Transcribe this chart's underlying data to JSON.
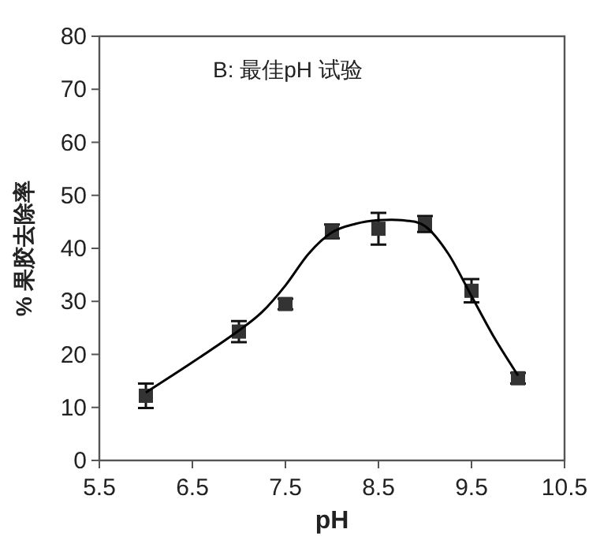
{
  "chart_data": {
    "type": "scatter",
    "title": "B: 最佳pH 试验",
    "xlabel": "pH",
    "ylabel": "% 果胶去除率",
    "xlim": [
      5.5,
      10.5
    ],
    "xticks": [
      5.5,
      6.5,
      7.5,
      8.5,
      9.5,
      10.5
    ],
    "ylim": [
      0,
      80
    ],
    "yticks": [
      0,
      10,
      20,
      30,
      40,
      50,
      60,
      70,
      80
    ],
    "grid": false,
    "series": [
      {
        "color": "#333333",
        "marker": "square",
        "x": [
          6,
          7,
          7.5,
          8,
          8.5,
          9,
          9.5,
          10
        ],
        "values": [
          12.2,
          24.3,
          29.5,
          43.2,
          43.7,
          44.6,
          32,
          15.5
        ],
        "errors": [
          2.3,
          2,
          1,
          1.3,
          3,
          1.5,
          2.2,
          1
        ]
      },
      {
        "type": "line",
        "color": "#000000",
        "line_style": "solid",
        "x": [
          6,
          6.5,
          7,
          7.25,
          7.5,
          7.75,
          8,
          8.25,
          8.5,
          8.75,
          9,
          9.25,
          9.5,
          9.75,
          10
        ],
        "values": [
          12.8,
          18.5,
          24.5,
          28,
          33,
          39,
          43,
          44.6,
          45.3,
          45.3,
          44.2,
          39,
          31,
          23,
          16
        ]
      }
    ]
  }
}
